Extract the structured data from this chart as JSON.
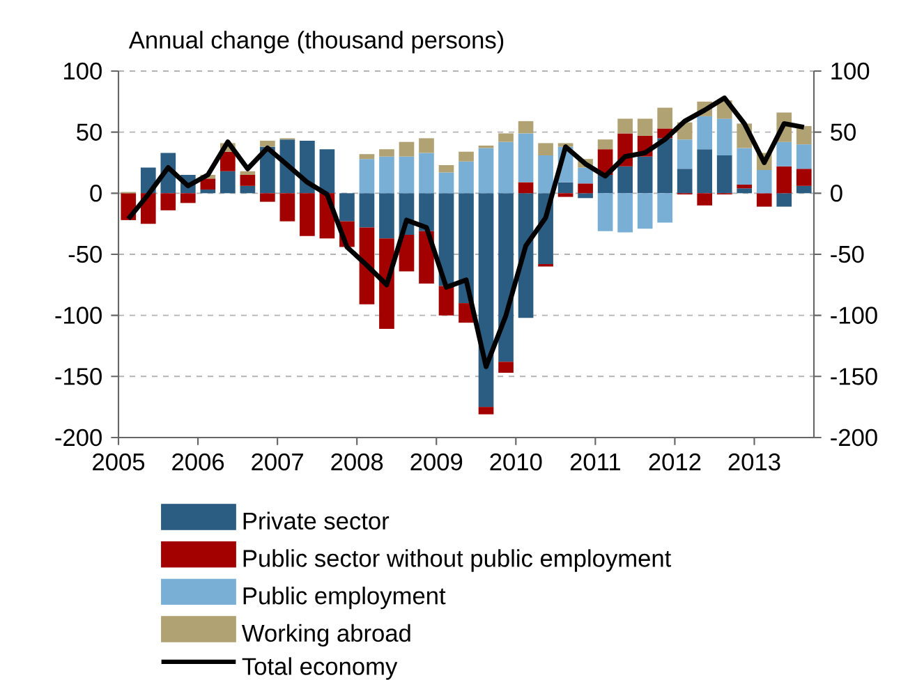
{
  "chart_data": {
    "type": "bar",
    "title": "Annual change (thousand persons)",
    "stacked": true,
    "x": [
      2005.125,
      2005.375,
      2005.625,
      2005.875,
      2006.125,
      2006.375,
      2006.625,
      2006.875,
      2007.125,
      2007.375,
      2007.625,
      2007.875,
      2008.125,
      2008.375,
      2008.625,
      2008.875,
      2009.125,
      2009.375,
      2009.625,
      2009.875,
      2010.125,
      2010.375,
      2010.625,
      2010.875,
      2011.125,
      2011.375,
      2011.625,
      2011.875,
      2012.125,
      2012.375,
      2012.625,
      2012.875,
      2013.125,
      2013.375,
      2013.625
    ],
    "series": [
      {
        "name": "Private sector",
        "color": "#2b5c81",
        "values": [
          null,
          21,
          33,
          15,
          3,
          18,
          6,
          38,
          44,
          43,
          36,
          -23,
          -28,
          -37,
          -34,
          -31,
          -76,
          -90,
          -175,
          -138,
          -102,
          -58,
          9,
          -4,
          15,
          22,
          30,
          45,
          20,
          36,
          31,
          4,
          null,
          -11,
          6
        ]
      },
      {
        "name": "Public sector without public employment",
        "color": "#a30000",
        "values": [
          -22,
          -25,
          -14,
          -8,
          9,
          16,
          9,
          -7,
          -23,
          -35,
          -37,
          -21,
          -63,
          -74,
          -30,
          -43,
          -24,
          -16,
          -6,
          -9,
          9,
          -2,
          -3,
          8,
          21,
          27,
          17,
          8,
          -1,
          -10,
          -1,
          3,
          -11,
          22,
          14
        ]
      },
      {
        "name": "Public employment",
        "color": "#7aafd5",
        "values": [
          null,
          null,
          null,
          null,
          null,
          null,
          null,
          null,
          null,
          null,
          null,
          null,
          28,
          30,
          30,
          33,
          17,
          26,
          37,
          42,
          40,
          31,
          29,
          13,
          -31,
          -32,
          -29,
          -24,
          24,
          27,
          30,
          30,
          19,
          20,
          20
        ]
      },
      {
        "name": "Working abroad",
        "color": "#b1a274",
        "values": [
          1,
          null,
          null,
          null,
          3,
          7,
          3,
          5,
          1,
          null,
          null,
          null,
          4,
          6,
          12,
          12,
          6,
          8,
          2,
          7,
          10,
          10,
          3,
          7,
          8,
          12,
          14,
          17,
          14,
          12,
          15,
          20,
          14,
          24,
          15
        ]
      },
      {
        "name": "Total economy",
        "type": "line",
        "color": "#000000",
        "values": [
          -21,
          -1,
          21,
          6,
          15,
          42,
          20,
          37,
          23,
          9,
          -1,
          -44,
          -59,
          -75,
          -22,
          -28,
          -77,
          -71,
          -142,
          -100,
          -43,
          -20,
          38,
          24,
          14,
          30,
          33,
          44,
          59,
          68,
          78,
          57,
          25,
          57,
          54
        ]
      }
    ],
    "xlim": [
      2005,
      2013.75
    ],
    "xticks": [
      2005,
      2006,
      2007,
      2008,
      2009,
      2010,
      2011,
      2012,
      2013
    ],
    "ylim": [
      -200,
      100
    ],
    "yticks": [
      -200,
      -150,
      -100,
      -50,
      0,
      50,
      100
    ],
    "y2lim": [
      -200,
      100
    ],
    "y2ticks": [
      -200,
      -150,
      -100,
      -50,
      0,
      50,
      100
    ],
    "grid": "y",
    "legend": "bottom"
  }
}
